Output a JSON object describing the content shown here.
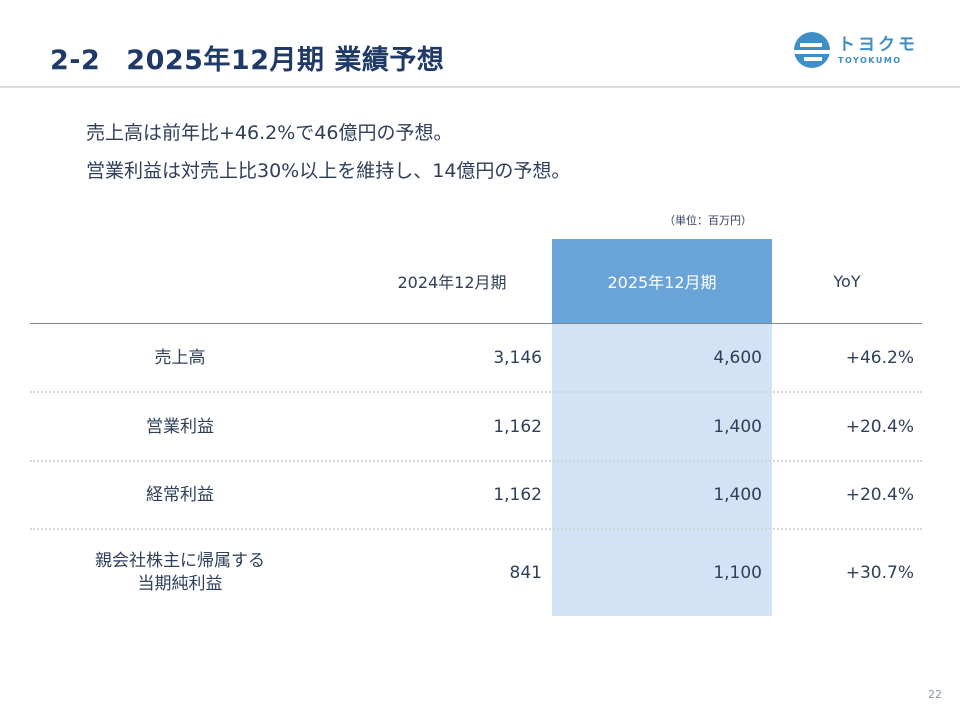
{
  "slide": {
    "number": "2-2",
    "title": "2025年12月期 業績予想",
    "page": "22"
  },
  "logo": {
    "jp": "トヨクモ",
    "en": "TOYOKUMO",
    "color": "#3e8fc7"
  },
  "lead": [
    "売上高は前年比+46.2%で46億円の予想。",
    "営業利益は対売上比30%以上を維持し、14億円の予想。"
  ],
  "table": {
    "unit": "（単位：百万円）",
    "headers": {
      "prev": "2024年12月期",
      "current": "2025年12月期",
      "yoy": "YoY"
    },
    "rows": [
      {
        "label": "売上高",
        "prev": "3,146",
        "current": "4,600",
        "yoy": "+46.2%"
      },
      {
        "label": "営業利益",
        "prev": "1,162",
        "current": "1,400",
        "yoy": "+20.4%"
      },
      {
        "label": "経常利益",
        "prev": "1,162",
        "current": "1,400",
        "yoy": "+20.4%"
      },
      {
        "label": "親会社株主に帰属する\n当期純利益",
        "prev": "841",
        "current": "1,100",
        "yoy": "+30.7%"
      }
    ],
    "colors": {
      "highlight_header": "#6aa3d8",
      "highlight_body": "#d1e3f4",
      "title": "#1f3a68"
    }
  }
}
